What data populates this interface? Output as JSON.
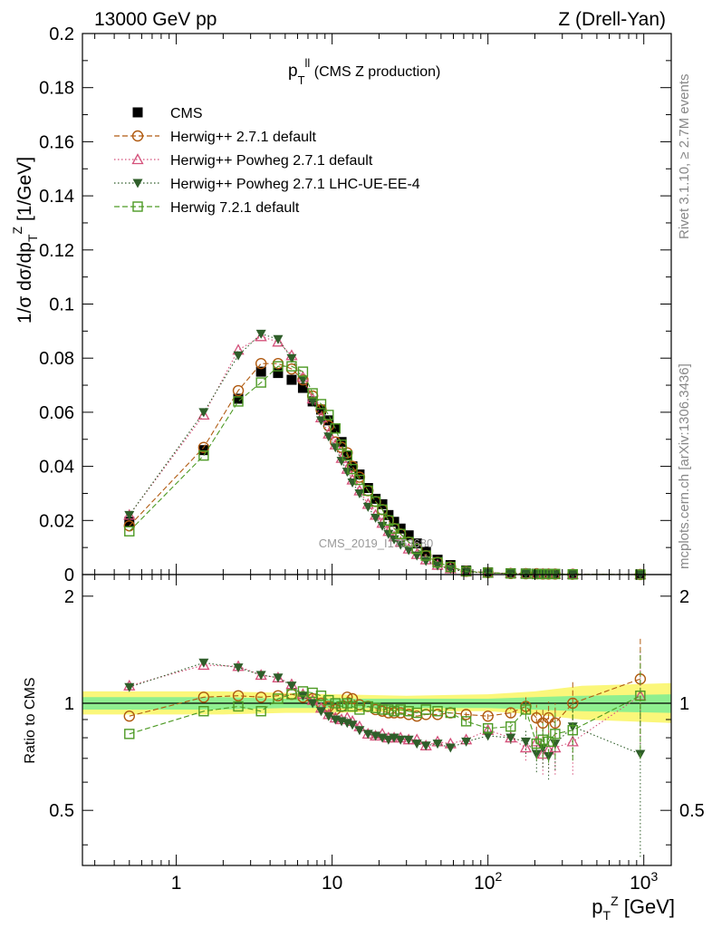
{
  "header": {
    "left": "13000 GeV pp",
    "right": "Z (Drell-Yan)"
  },
  "side_labels": {
    "top": "Rivet 3.1.10, ≥ 2.7M events",
    "bottom": "mcplots.cern.ch [arXiv:1306.3436]"
  },
  "chart_data": [
    {
      "type": "line",
      "panel": "main",
      "title": "p_T^ll (CMS Z production)",
      "ylabel": "1/σ dσ/dp_T^Z [1/GeV]",
      "xlabel": "p_T^Z [GeV]",
      "xscale": "log",
      "xlim": [
        0.25,
        1500
      ],
      "ylim": [
        0,
        0.2
      ],
      "yticks": [
        0,
        0.02,
        0.04,
        0.06,
        0.08,
        0.1,
        0.12,
        0.14,
        0.16,
        0.18,
        0.2
      ],
      "xtick_labels": [
        "1",
        "10",
        "10^2",
        "10^3"
      ],
      "watermark": "CMS_2019_I1753680",
      "legend_position": "top-left",
      "series": [
        {
          "name": "CMS",
          "color": "#000000",
          "marker": "filled-square",
          "line": "none",
          "x": [
            0.5,
            1.5,
            2.5,
            3.5,
            4.5,
            5.5,
            6.5,
            7.5,
            8.5,
            9.5,
            10.5,
            11.5,
            12.5,
            13.5,
            15,
            17,
            19,
            21,
            23,
            25,
            27.5,
            31,
            35,
            40,
            47.5,
            57.5,
            72.5,
            100,
            140,
            175,
            205,
            225,
            245,
            270,
            350,
            950
          ],
          "y": [
            0.0195,
            0.046,
            0.065,
            0.075,
            0.0745,
            0.072,
            0.069,
            0.064,
            0.061,
            0.057,
            0.054,
            0.049,
            0.044,
            0.04,
            0.037,
            0.032,
            0.028,
            0.026,
            0.022,
            0.0195,
            0.017,
            0.0145,
            0.0115,
            0.0085,
            0.0055,
            0.0035,
            0.0015,
            0.0008,
            0.0005,
            0.0004,
            0.0003,
            0.0003,
            0.0002,
            0.0002,
            0.0001,
            1e-05
          ]
        },
        {
          "name": "Herwig++ 2.7.1 default",
          "color": "#b05a10",
          "marker": "open-circle",
          "line": "dashed",
          "x": [
            0.5,
            1.5,
            2.5,
            3.5,
            4.5,
            5.5,
            6.5,
            7.5,
            8.5,
            9.5,
            10.5,
            11.5,
            12.5,
            13.5,
            15,
            17,
            19,
            21,
            23,
            25,
            27.5,
            31,
            35,
            40,
            47.5,
            57.5,
            72.5,
            100,
            140,
            175,
            205,
            225,
            245,
            270,
            350,
            950
          ],
          "y": [
            0.018,
            0.047,
            0.068,
            0.078,
            0.078,
            0.076,
            0.072,
            0.066,
            0.061,
            0.055,
            0.049,
            0.047,
            0.045,
            0.04,
            0.036,
            0.031,
            0.027,
            0.024,
            0.02,
            0.017,
            0.015,
            0.012,
            0.0095,
            0.007,
            0.0045,
            0.0028,
            0.0012,
            0.0007,
            0.0004,
            0.0003,
            0.0003,
            0.0002,
            0.0002,
            0.0002,
            0.0001,
            1e-05
          ]
        },
        {
          "name": "Herwig++ Powheg 2.7.1 default",
          "color": "#d4507a",
          "marker": "open-triangle",
          "line": "dotted",
          "x": [
            0.5,
            1.5,
            2.5,
            3.5,
            4.5,
            5.5,
            6.5,
            7.5,
            8.5,
            9.5,
            10.5,
            11.5,
            12.5,
            13.5,
            15,
            17,
            19,
            21,
            23,
            25,
            27.5,
            31,
            35,
            40,
            47.5,
            57.5,
            72.5,
            100,
            140,
            175,
            205,
            225,
            245,
            270,
            350,
            950
          ],
          "y": [
            0.022,
            0.059,
            0.083,
            0.088,
            0.086,
            0.081,
            0.073,
            0.065,
            0.058,
            0.052,
            0.048,
            0.043,
            0.039,
            0.035,
            0.031,
            0.026,
            0.022,
            0.019,
            0.016,
            0.014,
            0.012,
            0.0095,
            0.0075,
            0.0055,
            0.0035,
            0.0022,
            0.001,
            0.0006,
            0.0004,
            0.0003,
            0.0002,
            0.0002,
            0.0002,
            0.0001,
            0.0001,
            1e-05
          ]
        },
        {
          "name": "Herwig++ Powheg 2.7.1 LHC-UE-EE-4",
          "color": "#2f5e2a",
          "marker": "filled-triangle-down",
          "line": "dotted",
          "x": [
            0.5,
            1.5,
            2.5,
            3.5,
            4.5,
            5.5,
            6.5,
            7.5,
            8.5,
            9.5,
            10.5,
            11.5,
            12.5,
            13.5,
            15,
            17,
            19,
            21,
            23,
            25,
            27.5,
            31,
            35,
            40,
            47.5,
            57.5,
            72.5,
            100,
            140,
            175,
            205,
            225,
            245,
            270,
            350,
            950
          ],
          "y": [
            0.022,
            0.06,
            0.081,
            0.089,
            0.087,
            0.08,
            0.072,
            0.064,
            0.057,
            0.051,
            0.047,
            0.042,
            0.038,
            0.034,
            0.03,
            0.025,
            0.021,
            0.018,
            0.015,
            0.013,
            0.011,
            0.009,
            0.007,
            0.005,
            0.0033,
            0.0021,
            0.001,
            0.0006,
            0.0004,
            0.0003,
            0.0002,
            0.0002,
            0.0001,
            0.0001,
            0.0001,
            1e-05
          ]
        },
        {
          "name": "Herwig 7.2.1 default",
          "color": "#4d9a24",
          "marker": "open-square",
          "line": "dashed",
          "x": [
            0.5,
            1.5,
            2.5,
            3.5,
            4.5,
            5.5,
            6.5,
            7.5,
            8.5,
            9.5,
            10.5,
            11.5,
            12.5,
            13.5,
            15,
            17,
            19,
            21,
            23,
            25,
            27.5,
            31,
            35,
            40,
            47.5,
            57.5,
            72.5,
            100,
            140,
            175,
            205,
            225,
            245,
            270,
            350,
            950
          ],
          "y": [
            0.016,
            0.044,
            0.064,
            0.071,
            0.077,
            0.077,
            0.075,
            0.067,
            0.063,
            0.059,
            0.054,
            0.048,
            0.044,
            0.039,
            0.035,
            0.031,
            0.027,
            0.024,
            0.02,
            0.017,
            0.015,
            0.012,
            0.0095,
            0.007,
            0.0045,
            0.0028,
            0.0012,
            0.0007,
            0.0004,
            0.0003,
            0.0002,
            0.0002,
            0.0002,
            0.0002,
            0.0001,
            1e-05
          ]
        }
      ]
    },
    {
      "type": "line",
      "panel": "ratio",
      "ylabel": "Ratio to CMS",
      "xscale": "log",
      "xlim": [
        0.25,
        1500
      ],
      "ylim": [
        0.35,
        2.3
      ],
      "yscale": "log",
      "ytick_labels": [
        "0.5",
        "1",
        "2"
      ],
      "bands": [
        {
          "name": "yellow",
          "color": "#fbf77a",
          "x": [
            0.25,
            2,
            5,
            10,
            30,
            100,
            200,
            400,
            1500
          ],
          "lo": [
            0.93,
            0.93,
            0.94,
            0.94,
            0.95,
            0.95,
            0.93,
            0.9,
            0.88
          ],
          "hi": [
            1.08,
            1.08,
            1.07,
            1.06,
            1.05,
            1.06,
            1.08,
            1.12,
            1.14
          ]
        },
        {
          "name": "green",
          "color": "#8fef8f",
          "x": [
            0.25,
            2,
            5,
            10,
            30,
            100,
            200,
            400,
            1500
          ],
          "lo": [
            0.96,
            0.96,
            0.97,
            0.97,
            0.97,
            0.97,
            0.96,
            0.95,
            0.94
          ],
          "hi": [
            1.04,
            1.04,
            1.03,
            1.03,
            1.03,
            1.03,
            1.04,
            1.05,
            1.06
          ]
        }
      ],
      "series": [
        {
          "name": "Herwig++ 2.7.1 default",
          "color": "#b05a10",
          "marker": "open-circle",
          "line": "dashed",
          "x": [
            0.5,
            1.5,
            2.5,
            3.5,
            4.5,
            5.5,
            6.5,
            7.5,
            8.5,
            9.5,
            10.5,
            11.5,
            12.5,
            13.5,
            15,
            17,
            19,
            21,
            23,
            25,
            27.5,
            31,
            35,
            40,
            47.5,
            57.5,
            72.5,
            100,
            140,
            175,
            205,
            225,
            245,
            270,
            350,
            950
          ],
          "y": [
            0.92,
            1.04,
            1.05,
            1.04,
            1.05,
            1.06,
            1.04,
            1.03,
            1.0,
            0.98,
            0.96,
            0.98,
            1.04,
            1.03,
            0.99,
            0.98,
            0.96,
            0.95,
            0.94,
            0.94,
            0.94,
            0.93,
            0.92,
            0.93,
            0.93,
            0.94,
            0.93,
            0.92,
            0.94,
            0.98,
            0.91,
            0.88,
            0.91,
            0.88,
            1.0,
            1.17
          ],
          "err": [
            0.01,
            0.01,
            0.01,
            0.01,
            0.01,
            0.01,
            0.01,
            0.01,
            0.01,
            0.01,
            0.01,
            0.01,
            0.01,
            0.01,
            0.01,
            0.01,
            0.01,
            0.01,
            0.01,
            0.01,
            0.01,
            0.01,
            0.01,
            0.01,
            0.01,
            0.01,
            0.02,
            0.02,
            0.03,
            0.06,
            0.08,
            0.09,
            0.1,
            0.12,
            0.15,
            0.35
          ]
        },
        {
          "name": "Herwig++ Powheg 2.7.1 default",
          "color": "#d4507a",
          "marker": "open-triangle",
          "line": "dotted",
          "x": [
            0.5,
            1.5,
            2.5,
            3.5,
            4.5,
            5.5,
            6.5,
            7.5,
            8.5,
            9.5,
            10.5,
            11.5,
            12.5,
            13.5,
            15,
            17,
            19,
            21,
            23,
            25,
            27.5,
            31,
            35,
            40,
            47.5,
            57.5,
            72.5,
            100,
            140,
            175,
            205,
            225,
            245,
            270,
            350,
            950
          ],
          "y": [
            1.12,
            1.28,
            1.27,
            1.2,
            1.18,
            1.13,
            1.06,
            1.02,
            0.97,
            0.93,
            0.91,
            0.9,
            0.91,
            0.89,
            0.86,
            0.82,
            0.81,
            0.82,
            0.8,
            0.8,
            0.8,
            0.79,
            0.79,
            0.76,
            0.78,
            0.77,
            0.79,
            0.84,
            0.8,
            0.75,
            0.78,
            0.72,
            0.74,
            0.75,
            0.78,
            1.05
          ],
          "err": [
            0.01,
            0.01,
            0.01,
            0.01,
            0.01,
            0.01,
            0.01,
            0.01,
            0.01,
            0.01,
            0.01,
            0.01,
            0.01,
            0.01,
            0.01,
            0.01,
            0.01,
            0.01,
            0.01,
            0.01,
            0.01,
            0.01,
            0.01,
            0.01,
            0.01,
            0.01,
            0.02,
            0.02,
            0.03,
            0.06,
            0.08,
            0.09,
            0.1,
            0.12,
            0.15,
            0.35
          ]
        },
        {
          "name": "Herwig++ Powheg 2.7.1 LHC-UE-EE-4",
          "color": "#2f5e2a",
          "marker": "filled-triangle-down",
          "line": "dotted",
          "x": [
            0.5,
            1.5,
            2.5,
            3.5,
            4.5,
            5.5,
            6.5,
            7.5,
            8.5,
            9.5,
            10.5,
            11.5,
            12.5,
            13.5,
            15,
            17,
            19,
            21,
            23,
            25,
            27.5,
            31,
            35,
            40,
            47.5,
            57.5,
            72.5,
            100,
            140,
            175,
            205,
            225,
            245,
            270,
            350,
            950
          ],
          "y": [
            1.11,
            1.3,
            1.26,
            1.2,
            1.18,
            1.12,
            1.05,
            1.0,
            0.95,
            0.92,
            0.9,
            0.89,
            0.88,
            0.87,
            0.84,
            0.82,
            0.81,
            0.8,
            0.79,
            0.8,
            0.79,
            0.79,
            0.77,
            0.76,
            0.77,
            0.75,
            0.78,
            0.81,
            0.8,
            0.78,
            0.72,
            0.75,
            0.71,
            0.77,
            0.86,
            0.72
          ],
          "err": [
            0.01,
            0.01,
            0.01,
            0.01,
            0.01,
            0.01,
            0.01,
            0.01,
            0.01,
            0.01,
            0.01,
            0.01,
            0.01,
            0.01,
            0.01,
            0.01,
            0.01,
            0.01,
            0.01,
            0.01,
            0.01,
            0.01,
            0.01,
            0.01,
            0.01,
            0.01,
            0.02,
            0.02,
            0.03,
            0.06,
            0.08,
            0.09,
            0.1,
            0.12,
            0.15,
            0.35
          ]
        },
        {
          "name": "Herwig 7.2.1 default",
          "color": "#4d9a24",
          "marker": "open-square",
          "line": "dashed",
          "x": [
            0.5,
            1.5,
            2.5,
            3.5,
            4.5,
            5.5,
            6.5,
            7.5,
            8.5,
            9.5,
            10.5,
            11.5,
            12.5,
            13.5,
            15,
            17,
            19,
            21,
            23,
            25,
            27.5,
            31,
            35,
            40,
            47.5,
            57.5,
            72.5,
            100,
            140,
            175,
            205,
            225,
            245,
            270,
            350,
            950
          ],
          "y": [
            0.82,
            0.95,
            0.98,
            0.95,
            1.03,
            1.06,
            1.08,
            1.07,
            1.05,
            1.02,
            1.0,
            0.98,
            1.0,
            0.98,
            0.96,
            0.98,
            0.97,
            0.96,
            0.96,
            0.95,
            0.96,
            0.95,
            0.94,
            0.96,
            0.95,
            0.94,
            0.89,
            0.85,
            0.86,
            0.96,
            0.77,
            0.79,
            0.78,
            0.82,
            0.84,
            1.05
          ],
          "err": [
            0.01,
            0.01,
            0.01,
            0.01,
            0.01,
            0.01,
            0.01,
            0.01,
            0.01,
            0.01,
            0.01,
            0.01,
            0.01,
            0.01,
            0.01,
            0.01,
            0.01,
            0.01,
            0.01,
            0.01,
            0.01,
            0.01,
            0.01,
            0.01,
            0.01,
            0.01,
            0.02,
            0.02,
            0.03,
            0.06,
            0.08,
            0.09,
            0.1,
            0.12,
            0.15,
            0.35
          ]
        }
      ]
    }
  ]
}
